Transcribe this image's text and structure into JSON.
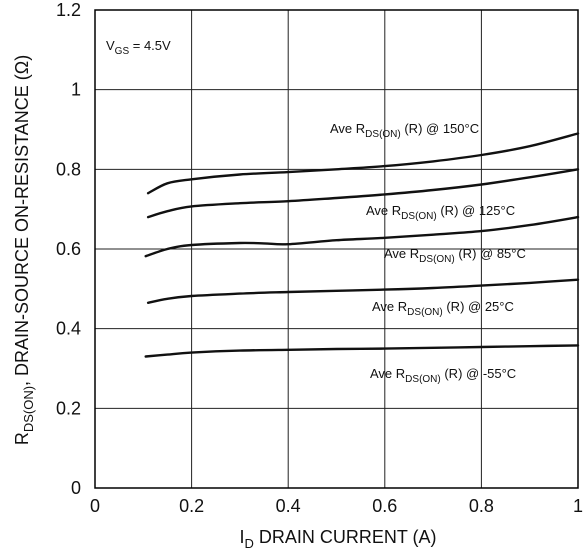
{
  "chart_data": {
    "type": "line",
    "xlabel": {
      "main": "I",
      "sub": "D",
      "rest": " DRAIN CURRENT (A)"
    },
    "ylabel": {
      "main": "R",
      "sub": "DS(ON)",
      "rest": ", DRAIN-SOURCE ON-RESISTANCE (Ω)"
    },
    "xlim": [
      0,
      1
    ],
    "ylim": [
      0,
      1.2
    ],
    "xticks": [
      0,
      0.2,
      0.4,
      0.6,
      0.8,
      1
    ],
    "yticks": [
      0,
      0.2,
      0.4,
      0.6,
      0.8,
      1,
      1.2
    ],
    "xtick_labels": [
      "0",
      "0.2",
      "0.4",
      "0.6",
      "0.8",
      "1"
    ],
    "ytick_labels": [
      "0",
      "0.2",
      "0.4",
      "0.6",
      "0.8",
      "1",
      "1.2"
    ],
    "grid": true,
    "condition": {
      "main": "V",
      "sub": "GS",
      "rest": " = 4.5V"
    },
    "series": [
      {
        "label": {
          "pre": "Ave R",
          "sub": "DS(ON)",
          "post": " (R) @ 150°C"
        },
        "x": [
          0.11,
          0.15,
          0.2,
          0.3,
          0.4,
          0.5,
          0.6,
          0.7,
          0.8,
          0.9,
          1.0
        ],
        "y": [
          0.74,
          0.765,
          0.775,
          0.787,
          0.793,
          0.8,
          0.808,
          0.82,
          0.836,
          0.858,
          0.89
        ]
      },
      {
        "label": {
          "pre": "Ave R",
          "sub": "DS(ON)",
          "post": " (R) @ 125°C"
        },
        "x": [
          0.11,
          0.15,
          0.2,
          0.3,
          0.4,
          0.5,
          0.6,
          0.7,
          0.8,
          0.9,
          1.0
        ],
        "y": [
          0.68,
          0.695,
          0.707,
          0.715,
          0.72,
          0.728,
          0.737,
          0.748,
          0.762,
          0.78,
          0.8
        ]
      },
      {
        "label": {
          "pre": "Ave R",
          "sub": "DS(ON)",
          "post": " (R) @ 85°C"
        },
        "x": [
          0.105,
          0.15,
          0.2,
          0.3,
          0.35,
          0.4,
          0.5,
          0.6,
          0.7,
          0.8,
          0.9,
          1.0
        ],
        "y": [
          0.582,
          0.6,
          0.61,
          0.615,
          0.614,
          0.612,
          0.622,
          0.628,
          0.636,
          0.645,
          0.66,
          0.68
        ]
      },
      {
        "label": {
          "pre": "Ave R",
          "sub": "DS(ON)",
          "post": " (R) @ 25°C"
        },
        "x": [
          0.11,
          0.15,
          0.2,
          0.3,
          0.4,
          0.5,
          0.6,
          0.7,
          0.8,
          0.9,
          1.0
        ],
        "y": [
          0.465,
          0.475,
          0.482,
          0.488,
          0.492,
          0.495,
          0.498,
          0.502,
          0.508,
          0.515,
          0.523
        ]
      },
      {
        "label": {
          "pre": "Ave R",
          "sub": "DS(ON)",
          "post": " (R) @ -55°C"
        },
        "x": [
          0.105,
          0.15,
          0.2,
          0.3,
          0.4,
          0.5,
          0.6,
          0.7,
          0.8,
          0.9,
          1.0
        ],
        "y": [
          0.33,
          0.335,
          0.34,
          0.345,
          0.347,
          0.349,
          0.35,
          0.352,
          0.354,
          0.356,
          0.358
        ]
      }
    ]
  },
  "colors": {
    "line": "#111111",
    "grid": "#222222",
    "axis": "#000000",
    "background": "#ffffff"
  }
}
